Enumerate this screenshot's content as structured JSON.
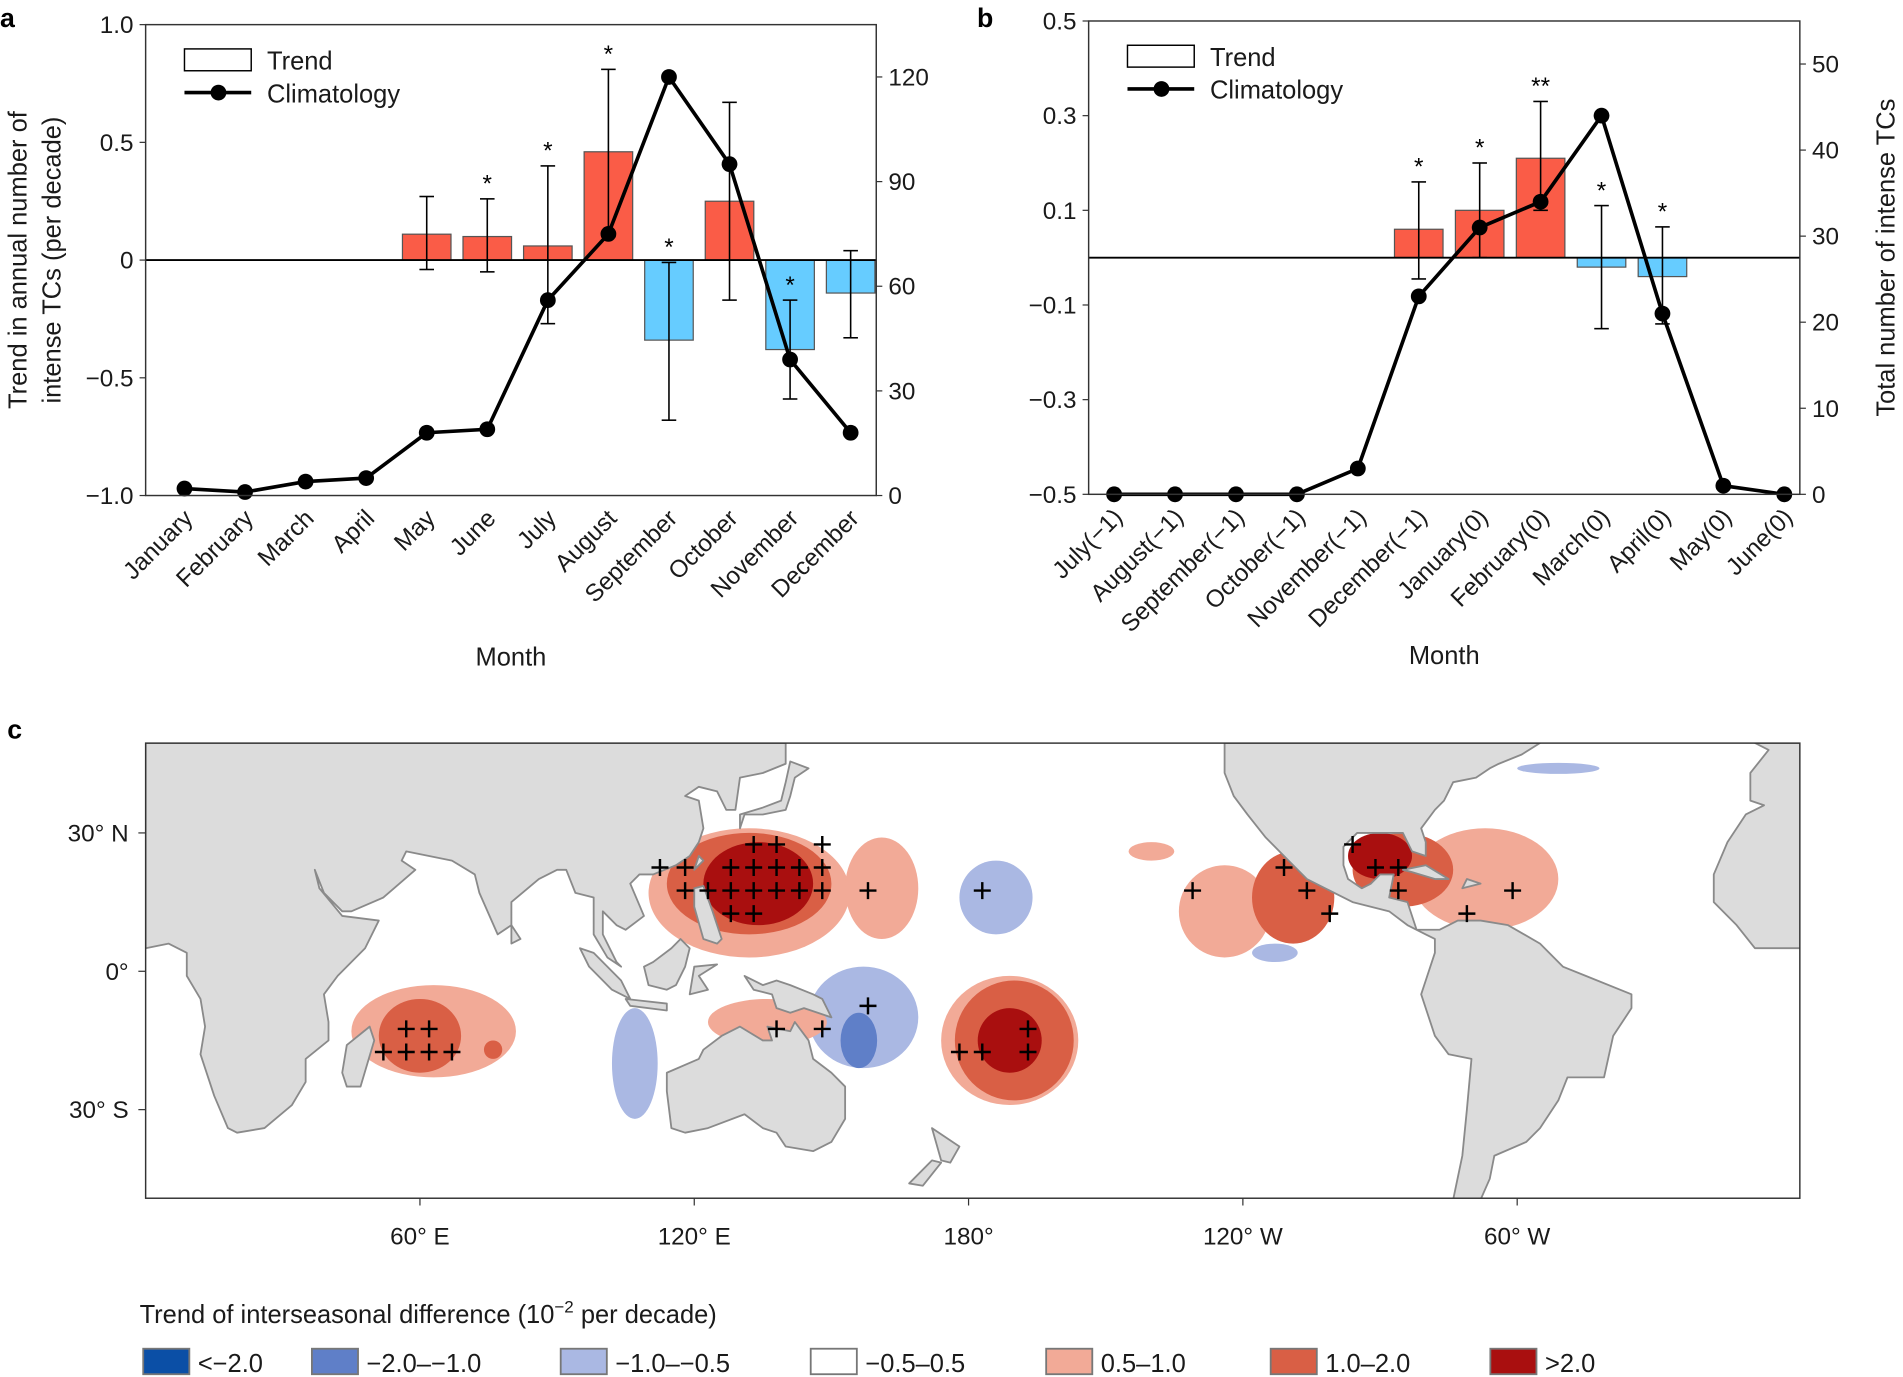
{
  "colors": {
    "positive_bar": "#fa5c47",
    "negative_bar": "#66ccff",
    "land": "#dcdcdc",
    "coast": "#8a8a8a",
    "line": "#000000"
  },
  "chart_data": [
    {
      "panel_label": "a",
      "type": "bar+line",
      "xlabel": "Month",
      "ylabel": "Trend in annual number of intense TCs (per decade)",
      "ylabel_lines": [
        "Trend in annual number of",
        "intense TCs (per decade)"
      ],
      "y2label": "",
      "ylim": [
        -1.0,
        1.0
      ],
      "y2lim": [
        0,
        135
      ],
      "yticks": [
        "1.0",
        "0.5",
        "0",
        "−0.5",
        "−1.0"
      ],
      "ytick_values": [
        1.0,
        0.5,
        0,
        -0.5,
        -1.0
      ],
      "y2ticks": [
        "0",
        "30",
        "60",
        "90",
        "120"
      ],
      "y2tick_values": [
        0,
        30,
        60,
        90,
        120
      ],
      "legend": {
        "position": "top-left",
        "entries": [
          "Trend",
          "Climatology"
        ]
      },
      "categories": [
        "January",
        "February",
        "March",
        "April",
        "May",
        "June",
        "July",
        "August",
        "September",
        "October",
        "November",
        "December"
      ],
      "trend": [
        0,
        0,
        0,
        0,
        0.11,
        0.1,
        0.06,
        0.46,
        -0.34,
        0.25,
        -0.38,
        -0.14
      ],
      "trend_ci": [
        null,
        null,
        null,
        null,
        [
          -0.04,
          0.27
        ],
        [
          -0.05,
          0.26
        ],
        [
          -0.27,
          0.4
        ],
        [
          0.1,
          0.81
        ],
        [
          -0.68,
          -0.01
        ],
        [
          -0.17,
          0.67
        ],
        [
          -0.59,
          -0.17
        ],
        [
          -0.33,
          0.04
        ]
      ],
      "significance": [
        "",
        "",
        "",
        "",
        "",
        "*",
        "*",
        "*",
        "*",
        "",
        "*",
        ""
      ],
      "climatology": [
        2,
        1,
        4,
        5,
        18,
        19,
        56,
        75,
        120,
        95,
        39,
        18
      ]
    },
    {
      "panel_label": "b",
      "type": "bar+line",
      "xlabel": "Month",
      "ylabel": "",
      "y2label": "Total number of intense TCs",
      "ylim": [
        -0.5,
        0.5
      ],
      "y2lim": [
        0,
        55
      ],
      "yticks": [
        "0.5",
        "0.3",
        "0.1",
        "−0.1",
        "−0.3",
        "−0.5"
      ],
      "ytick_values": [
        0.5,
        0.3,
        0.1,
        -0.1,
        -0.3,
        -0.5
      ],
      "y2ticks": [
        "0",
        "10",
        "20",
        "30",
        "40",
        "50"
      ],
      "y2tick_values": [
        0,
        10,
        20,
        30,
        40,
        50
      ],
      "legend": {
        "position": "top-left",
        "entries": [
          "Trend",
          "Climatology"
        ]
      },
      "categories": [
        "July(−1)",
        "August(−1)",
        "September(−1)",
        "October(−1)",
        "November(−1)",
        "December(−1)",
        "January(0)",
        "February(0)",
        "March(0)",
        "April(0)",
        "May(0)",
        "June(0)"
      ],
      "trend": [
        0,
        0,
        0,
        0,
        0,
        0.06,
        0.1,
        0.21,
        -0.02,
        -0.04,
        0,
        0
      ],
      "trend_ci": [
        null,
        null,
        null,
        null,
        null,
        [
          -0.045,
          0.16
        ],
        [
          0.0,
          0.2
        ],
        [
          0.1,
          0.33
        ],
        [
          -0.15,
          0.11
        ],
        [
          -0.14,
          0.065
        ],
        null,
        null
      ],
      "significance": [
        "",
        "",
        "",
        "",
        "",
        "*",
        "*",
        "**",
        "*",
        "*",
        "",
        ""
      ],
      "climatology": [
        0,
        0,
        0,
        0,
        3,
        23,
        31,
        34,
        44,
        21,
        1,
        0
      ]
    },
    {
      "panel_label": "c",
      "type": "heatmap",
      "lon_range": [
        0,
        362
      ],
      "lat_range": [
        -49,
        49.5
      ],
      "yticks": [
        "30° N",
        "0°",
        "30° S"
      ],
      "ytick_values": [
        30,
        0,
        -30
      ],
      "xticks": [
        "60° E",
        "120° E",
        "180°",
        "120° W",
        "60° W"
      ],
      "xtick_values": [
        60,
        120,
        180,
        240,
        300
      ],
      "legend": {
        "title_pre": "Trend of interseasonal difference (10",
        "title_sup": "−2",
        "title_post": " per decade)",
        "position": "bottom",
        "classes": [
          {
            "label": "<−2.0",
            "color": "#0b4fa6"
          },
          {
            "label": "−2.0–−1.0",
            "color": "#5f7fc8"
          },
          {
            "label": "−1.0–−0.5",
            "color": "#aab8e3"
          },
          {
            "label": "−0.5–0.5",
            "color": "#ffffff"
          },
          {
            "label": "0.5–1.0",
            "color": "#f2aa97"
          },
          {
            "label": "1.0–2.0",
            "color": "#d95f45"
          },
          {
            "label": ">2.0",
            "color": "#a90f0f"
          }
        ]
      },
      "regions": [
        {
          "class": 4,
          "lon": 132,
          "lat": 17,
          "rlon": 22,
          "rlat": 14
        },
        {
          "class": 4,
          "lon": 161,
          "lat": 18,
          "rlon": 8,
          "rlat": 11
        },
        {
          "class": 2,
          "lon": 186,
          "lat": 16,
          "rlon": 8,
          "rlat": 8
        },
        {
          "class": 5,
          "lon": 132,
          "lat": 19,
          "rlon": 18,
          "rlat": 11
        },
        {
          "class": 6,
          "lon": 134,
          "lat": 19,
          "rlon": 12,
          "rlat": 9
        },
        {
          "class": 4,
          "lon": 236,
          "lat": 13,
          "rlon": 10,
          "rlat": 10
        },
        {
          "class": 4,
          "lon": 220,
          "lat": 26,
          "rlon": 5,
          "rlat": 2
        },
        {
          "class": 5,
          "lon": 251,
          "lat": 16,
          "rlon": 9,
          "rlat": 10
        },
        {
          "class": 2,
          "lon": 247,
          "lat": 4,
          "rlon": 5,
          "rlat": 2
        },
        {
          "class": 4,
          "lon": 293,
          "lat": 20,
          "rlon": 16,
          "rlat": 11
        },
        {
          "class": 5,
          "lon": 275,
          "lat": 22,
          "rlon": 11,
          "rlat": 8
        },
        {
          "class": 6,
          "lon": 270,
          "lat": 25,
          "rlon": 7,
          "rlat": 5
        },
        {
          "class": 2,
          "lon": 309,
          "lat": 44,
          "rlon": 9,
          "rlat": 1.2
        },
        {
          "class": 4,
          "lon": 63,
          "lat": -13,
          "rlon": 18,
          "rlat": 10
        },
        {
          "class": 5,
          "lon": 60,
          "lat": -14,
          "rlon": 9,
          "rlat": 8
        },
        {
          "class": 5,
          "lon": 76,
          "lat": -17,
          "rlon": 2,
          "rlat": 2
        },
        {
          "class": 2,
          "lon": 107,
          "lat": -20,
          "rlon": 5,
          "rlat": 12
        },
        {
          "class": 2,
          "lon": 157,
          "lat": -10,
          "rlon": 12,
          "rlat": 11
        },
        {
          "class": 1,
          "lon": 156,
          "lat": -15,
          "rlon": 4,
          "rlat": 6
        },
        {
          "class": 4,
          "lon": 136,
          "lat": -11,
          "rlon": 13,
          "rlat": 5
        },
        {
          "class": 4,
          "lon": 189,
          "lat": -15,
          "rlon": 15,
          "rlat": 14
        },
        {
          "class": 5,
          "lon": 190,
          "lat": -15,
          "rlon": 13,
          "rlat": 13
        },
        {
          "class": 6,
          "lon": 189,
          "lat": -15,
          "rlon": 7,
          "rlat": 7
        }
      ],
      "significant_points": [
        [
          133,
          27.5
        ],
        [
          138,
          27.5
        ],
        [
          148,
          27.5
        ],
        [
          112.5,
          22.5
        ],
        [
          118,
          22.5
        ],
        [
          128,
          22.5
        ],
        [
          133,
          22.5
        ],
        [
          138,
          22.5
        ],
        [
          143,
          22.5
        ],
        [
          148,
          22.5
        ],
        [
          118,
          17.5
        ],
        [
          123,
          17.5
        ],
        [
          128,
          17.5
        ],
        [
          133,
          17.5
        ],
        [
          138,
          17.5
        ],
        [
          143,
          17.5
        ],
        [
          148,
          17.5
        ],
        [
          158,
          17.5
        ],
        [
          128,
          12.5
        ],
        [
          133,
          12.5
        ],
        [
          183,
          17.5
        ],
        [
          229,
          17.5
        ],
        [
          249,
          22.5
        ],
        [
          254,
          17.5
        ],
        [
          259,
          12.5
        ],
        [
          264,
          27.5
        ],
        [
          269,
          22.5
        ],
        [
          274,
          22.5
        ],
        [
          274,
          17.5
        ],
        [
          289,
          12.5
        ],
        [
          299,
          17.5
        ],
        [
          57,
          -12.5
        ],
        [
          62,
          -12.5
        ],
        [
          52,
          -17.5
        ],
        [
          57,
          -17.5
        ],
        [
          62,
          -17.5
        ],
        [
          67,
          -17.5
        ],
        [
          138,
          -12.5
        ],
        [
          148,
          -12.5
        ],
        [
          158,
          -7.5
        ],
        [
          178,
          -17.5
        ],
        [
          183,
          -17.5
        ],
        [
          193,
          -12.5
        ],
        [
          193,
          -17.5
        ]
      ]
    }
  ]
}
